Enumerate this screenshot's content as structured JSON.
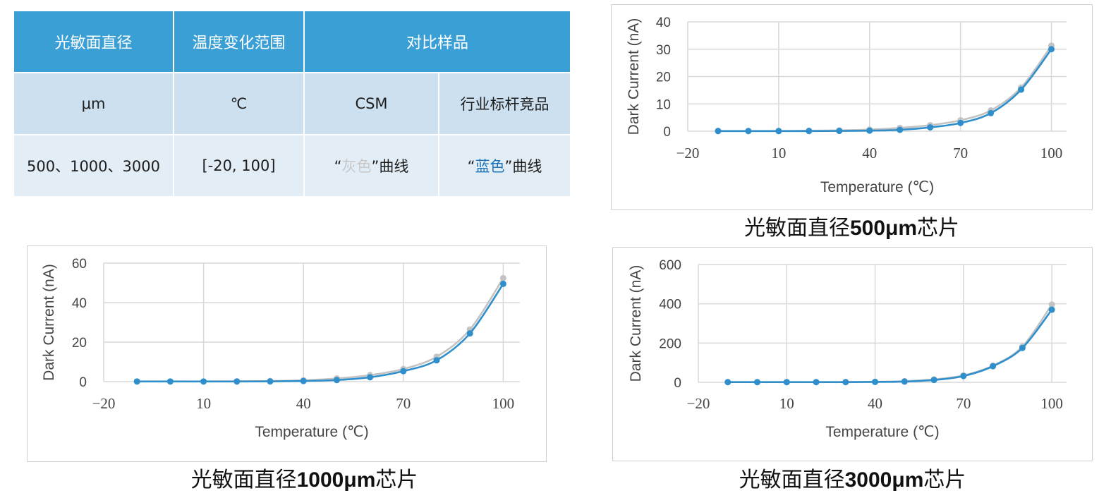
{
  "table": {
    "header": [
      "光敏面直径",
      "温度变化范围",
      "对比样品"
    ],
    "units": [
      "μm",
      "℃",
      "CSM",
      "行业标杆竞品"
    ],
    "values": {
      "diameters": "500、1000、3000",
      "range": "[-20, 100]",
      "gray_open": "“",
      "gray_word": "灰色",
      "gray_close": "”曲线",
      "blue_open": "“",
      "blue_word": "蓝色",
      "blue_close": "”曲线"
    }
  },
  "colors": {
    "blue_series": "#2e8fcc",
    "gray_series": "#c3c3c3",
    "header_bg": "#3a9fd4",
    "grid": "#d9d9d9"
  },
  "captions": [
    {
      "prefix": "光敏面直径",
      "bold": "500μm",
      "suffix": "芯片"
    },
    {
      "prefix": "光敏面直径",
      "bold": "1000μm",
      "suffix": "芯片"
    },
    {
      "prefix": "光敏面直径",
      "bold": "3000μm",
      "suffix": "芯片"
    }
  ],
  "chart_data": [
    {
      "type": "line",
      "xlabel": "Temperature (℃)",
      "ylabel": "Dark Current (nA)",
      "xlim": [
        -20,
        105
      ],
      "ylim": [
        0,
        40
      ],
      "xticks": [
        -20,
        10,
        40,
        70,
        100
      ],
      "yticks": [
        0,
        10,
        20,
        30,
        40
      ],
      "grid": true,
      "x": [
        -10,
        0,
        10,
        20,
        30,
        40,
        50,
        60,
        70,
        80,
        90,
        100
      ],
      "series": [
        {
          "color": "#c3c3c3",
          "values": [
            0.1,
            0.1,
            0.1,
            0.2,
            0.3,
            0.6,
            1.2,
            2.2,
            4.0,
            7.6,
            16.0,
            31.3
          ]
        },
        {
          "color": "#2e8fcc",
          "values": [
            0.05,
            0.05,
            0.05,
            0.05,
            0.1,
            0.2,
            0.5,
            1.4,
            3.0,
            6.6,
            15.2,
            30.0
          ]
        }
      ]
    },
    {
      "type": "line",
      "xlabel": "Temperature (℃)",
      "ylabel": "Dark Current (nA)",
      "xlim": [
        -20,
        105
      ],
      "ylim": [
        0,
        60
      ],
      "xticks": [
        -20,
        10,
        40,
        70,
        100
      ],
      "yticks": [
        0,
        20,
        40,
        60
      ],
      "grid": true,
      "x": [
        -10,
        0,
        10,
        20,
        30,
        40,
        50,
        60,
        70,
        80,
        90,
        100
      ],
      "series": [
        {
          "color": "#c3c3c3",
          "values": [
            0.1,
            0.1,
            0.1,
            0.2,
            0.3,
            0.7,
            1.6,
            3.3,
            6.4,
            12.6,
            26.4,
            52.4
          ]
        },
        {
          "color": "#2e8fcc",
          "values": [
            0.05,
            0.05,
            0.05,
            0.05,
            0.1,
            0.3,
            0.8,
            2.2,
            5.3,
            10.8,
            24.4,
            49.5
          ]
        }
      ]
    },
    {
      "type": "line",
      "xlabel": "Temperature (℃)",
      "ylabel": "Dark Current (nA)",
      "xlim": [
        -20,
        105
      ],
      "ylim": [
        0,
        600
      ],
      "xticks": [
        -20,
        10,
        40,
        70,
        100
      ],
      "yticks": [
        0,
        200,
        400,
        600
      ],
      "grid": true,
      "x": [
        -10,
        0,
        10,
        20,
        30,
        40,
        50,
        60,
        70,
        80,
        90,
        100
      ],
      "series": [
        {
          "color": "#c3c3c3",
          "values": [
            1,
            1,
            1,
            1,
            2,
            3,
            6,
            15,
            35,
            85,
            182,
            396
          ]
        },
        {
          "color": "#2e8fcc",
          "values": [
            1,
            1,
            1,
            1,
            1,
            2,
            4,
            12,
            32,
            82,
            175,
            370
          ]
        }
      ]
    }
  ]
}
